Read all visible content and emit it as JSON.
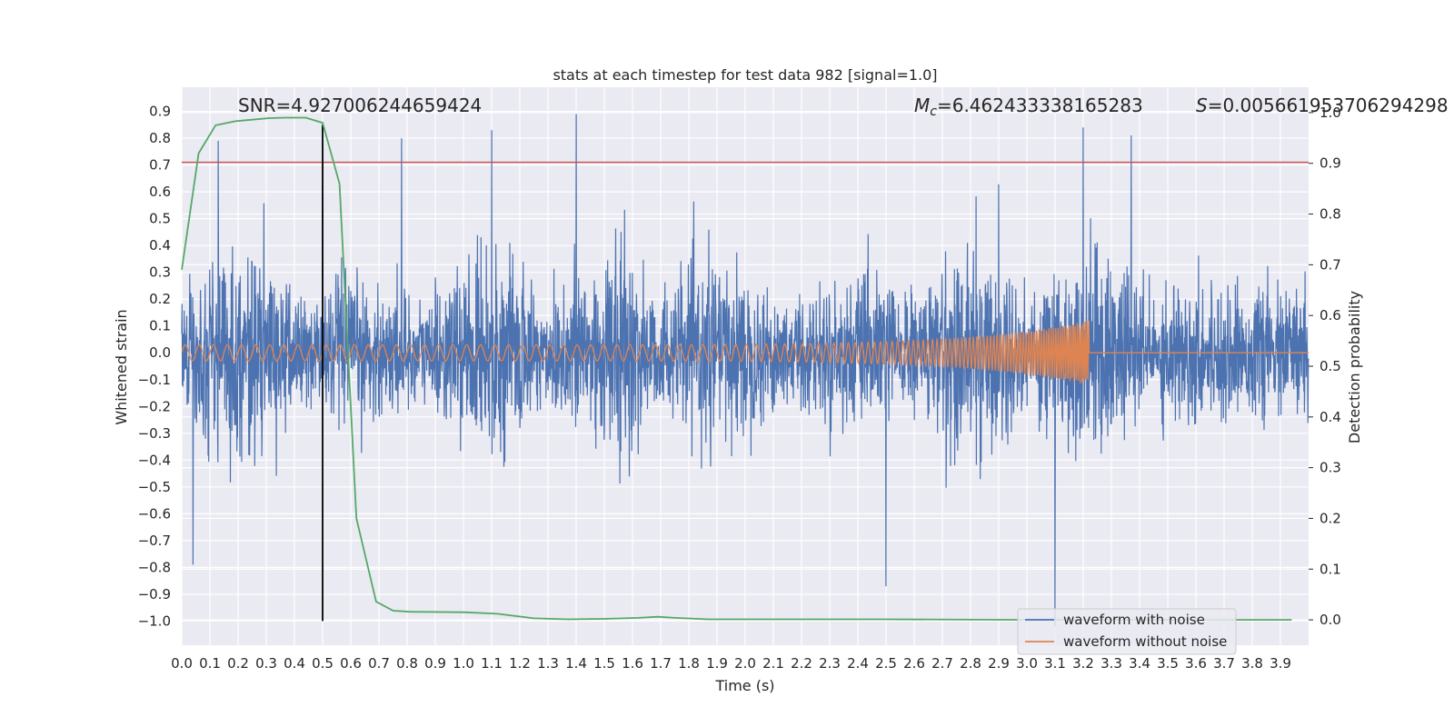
{
  "chart_data": {
    "type": "line",
    "title": "stats at each timestep for test data 982 [signal=1.0]",
    "xlabel": "Time (s)",
    "ylabel": "Whitened strain",
    "y2label": "Detection probability",
    "xlim": [
      0.0,
      4.0
    ],
    "ylim": [
      -1.09,
      0.99
    ],
    "y2lim": [
      -0.05,
      1.05
    ],
    "xticks": [
      "0.0",
      "0.1",
      "0.2",
      "0.3",
      "0.4",
      "0.5",
      "0.6",
      "0.7",
      "0.8",
      "0.9",
      "1.0",
      "1.1",
      "1.2",
      "1.3",
      "1.4",
      "1.5",
      "1.6",
      "1.7",
      "1.8",
      "1.9",
      "2.0",
      "2.1",
      "2.2",
      "2.3",
      "2.4",
      "2.5",
      "2.6",
      "2.7",
      "2.8",
      "2.9",
      "3.0",
      "3.1",
      "3.2",
      "3.3",
      "3.4",
      "3.5",
      "3.6",
      "3.7",
      "3.8",
      "3.9"
    ],
    "yticks": [
      "0.9",
      "0.8",
      "0.7",
      "0.6",
      "0.5",
      "0.4",
      "0.3",
      "0.2",
      "0.1",
      "0.0",
      "−0.1",
      "−0.2",
      "−0.3",
      "−0.4",
      "−0.5",
      "−0.6",
      "−0.7",
      "−0.8",
      "−0.9",
      "−1.0"
    ],
    "y2ticks": [
      "1.0",
      "0.9",
      "0.8",
      "0.7",
      "0.6",
      "0.5",
      "0.4",
      "0.3",
      "0.2",
      "0.1",
      "0.0"
    ],
    "grid": true,
    "legend_position": "lower-right",
    "annotations": {
      "snr": "SNR=4.927006244659424",
      "mc_symbol": "M",
      "mc_sub": "c",
      "mc_value": "=6.462433338165283",
      "s_symbol": "S",
      "s_value": "=0.005661953706294298"
    },
    "series": [
      {
        "name": "waveform with noise",
        "axis": "left",
        "color": "#4c72b0",
        "description": "dense whitened noise, peaks roughly in ±0.9, minimum near −1.0 at t≈3.1 s",
        "notable_peaks": [
          {
            "x": 0.13,
            "y": 0.79
          },
          {
            "x": 0.5,
            "y": 0.83
          },
          {
            "x": 0.78,
            "y": 0.8
          },
          {
            "x": 1.4,
            "y": 0.89
          },
          {
            "x": 1.1,
            "y": 0.83
          },
          {
            "x": 3.2,
            "y": 0.84
          },
          {
            "x": 3.37,
            "y": 0.81
          },
          {
            "x": 2.5,
            "y": -0.87
          },
          {
            "x": 3.1,
            "y": -1.02
          },
          {
            "x": 0.04,
            "y": -0.79
          }
        ]
      },
      {
        "name": "waveform without noise",
        "axis": "left",
        "color": "#dd8452",
        "description": "chirp with slowly increasing amplitude and frequency, merger near t≈3.22 s, flat zero afterwards",
        "amplitude_start": 0.03,
        "amplitude_peak": 0.12,
        "merger_time": 3.22,
        "freq_start_hz": 20,
        "freq_end_hz": 150
      },
      {
        "name": "detection probability",
        "axis": "right",
        "color": "#55a868",
        "x": [
          0.0,
          0.06,
          0.12,
          0.19,
          0.25,
          0.31,
          0.37,
          0.44,
          0.5,
          0.56,
          0.62,
          0.69,
          0.75,
          0.81,
          1.0,
          1.12,
          1.25,
          1.37,
          1.5,
          1.62,
          1.69,
          1.75,
          1.87,
          2.0,
          2.5,
          3.0,
          3.5,
          3.94
        ],
        "values": [
          0.69,
          0.92,
          0.975,
          0.983,
          0.986,
          0.989,
          0.99,
          0.99,
          0.98,
          0.86,
          0.2,
          0.036,
          0.018,
          0.016,
          0.015,
          0.012,
          0.003,
          0.001,
          0.002,
          0.004,
          0.006,
          0.004,
          0.001,
          0.001,
          0.001,
          0.0,
          0.0,
          0.0
        ]
      },
      {
        "name": "threshold",
        "axis": "left",
        "color": "#c44e52",
        "y": 0.71
      },
      {
        "name": "marker",
        "axis": "left",
        "color": "#000000",
        "x": 0.5,
        "y_range": [
          -1.0,
          0.85
        ]
      }
    ]
  },
  "legend": {
    "noise_label": "waveform with noise",
    "clean_label": "waveform without noise"
  },
  "colors": {
    "axes_bg": "#eaeaf2",
    "grid": "#ffffff",
    "noise": "#4c72b0",
    "clean": "#dd8452",
    "prob": "#55a868",
    "threshold": "#c44e52"
  }
}
